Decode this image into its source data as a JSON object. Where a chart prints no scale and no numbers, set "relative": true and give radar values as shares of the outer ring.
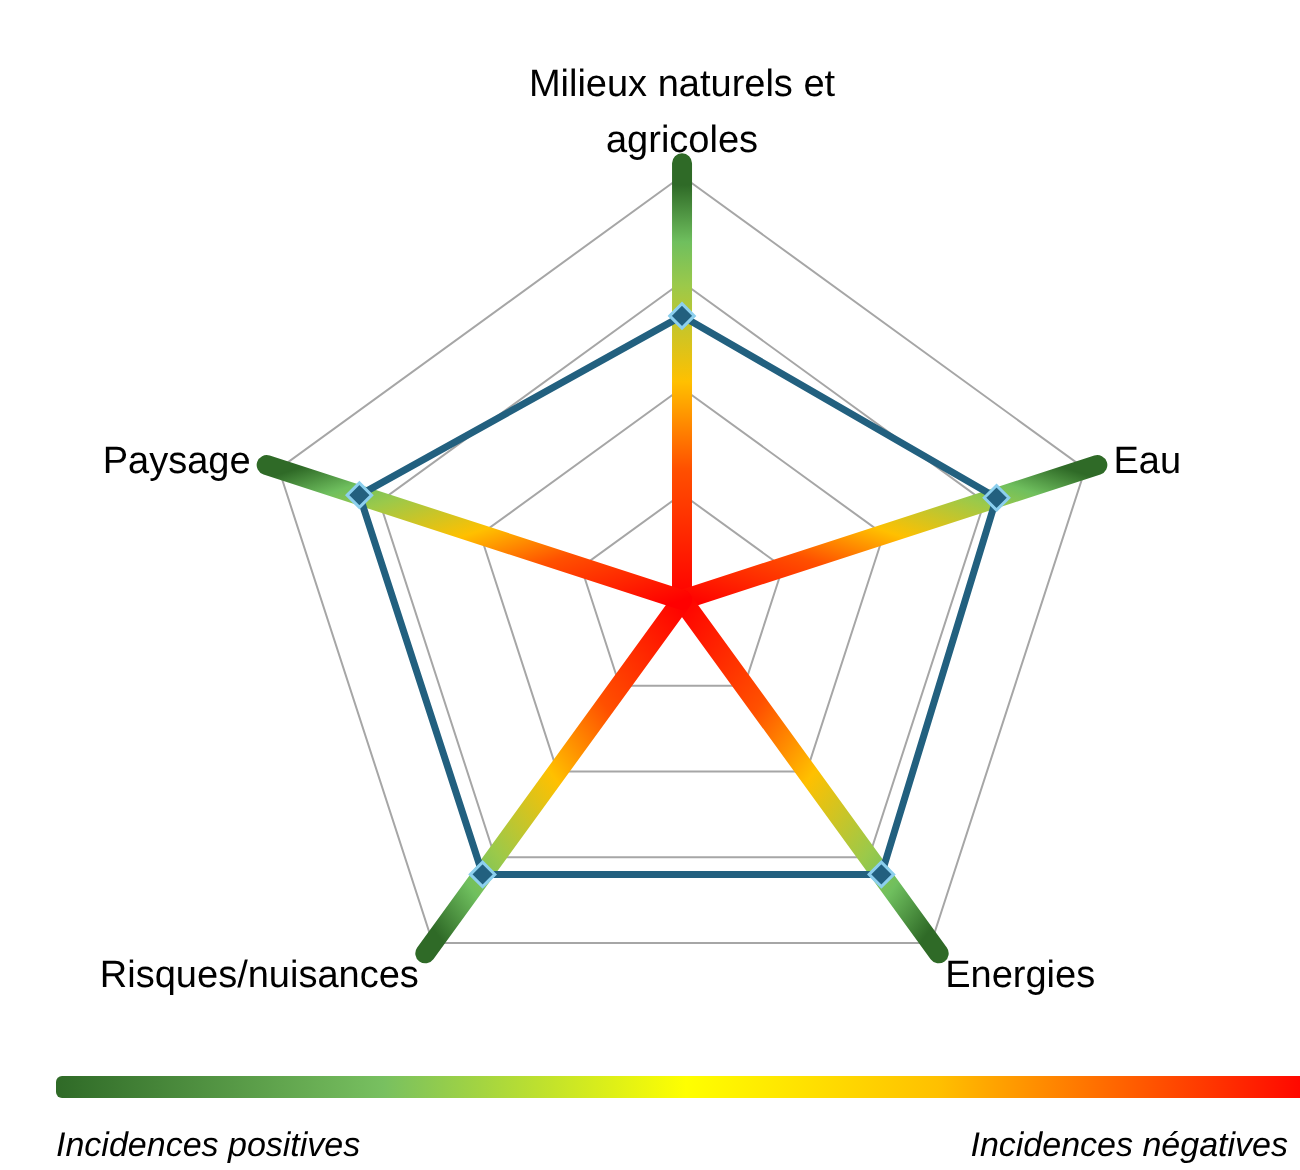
{
  "chart_data": {
    "type": "radar",
    "relative": true,
    "categories": [
      "Milieux naturels et agricoles",
      "Eau",
      "Energies",
      "Risques/nuisances",
      "Paysage"
    ],
    "series": [
      {
        "color": "#22607f",
        "values": [
          0.67,
          0.78,
          0.8,
          0.8,
          0.8
        ]
      }
    ],
    "marker": "diamond",
    "grid": true,
    "annotations": [
      "Incidences positives",
      "Incidences négatives"
    ]
  }
}
